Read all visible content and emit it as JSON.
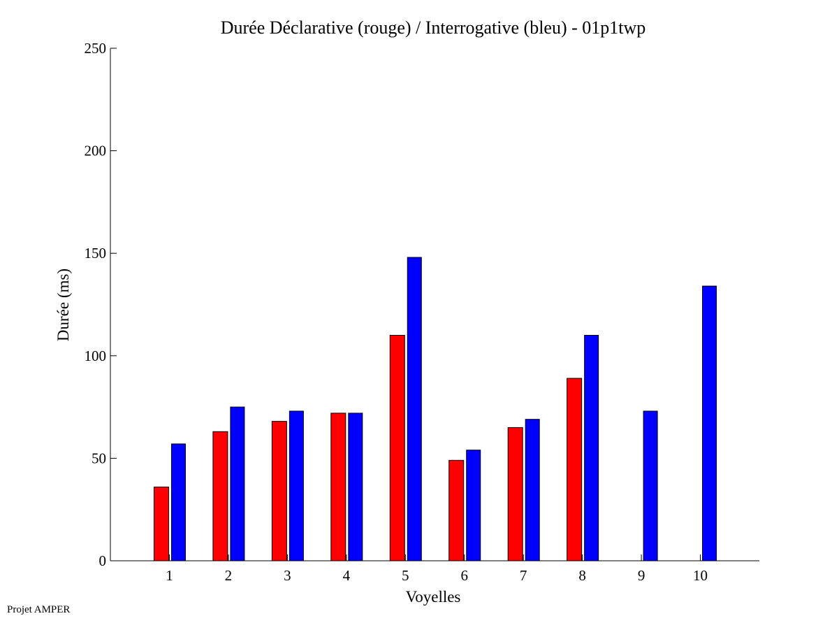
{
  "chart_data": {
    "type": "bar",
    "title": "Durée Déclarative (rouge) / Interrogative (bleu) - 01p1twp",
    "xlabel": "Voyelles",
    "ylabel": "Durée (ms)",
    "ylim": [
      0,
      250
    ],
    "xlim": [
      0,
      11
    ],
    "yticks": [
      0,
      50,
      100,
      150,
      200,
      250
    ],
    "categories": [
      "1",
      "2",
      "3",
      "4",
      "5",
      "6",
      "7",
      "8",
      "9",
      "10"
    ],
    "grid": false,
    "series": [
      {
        "name": "Déclarative (rouge)",
        "color": "#ff0000",
        "values": [
          36,
          63,
          68,
          72,
          110,
          49,
          65,
          89,
          null,
          null
        ]
      },
      {
        "name": "Interrogative (bleu)",
        "color": "#0000ff",
        "values": [
          57,
          75,
          73,
          72,
          148,
          54,
          69,
          110,
          73,
          134
        ]
      }
    ]
  },
  "footer": "Projet AMPER"
}
